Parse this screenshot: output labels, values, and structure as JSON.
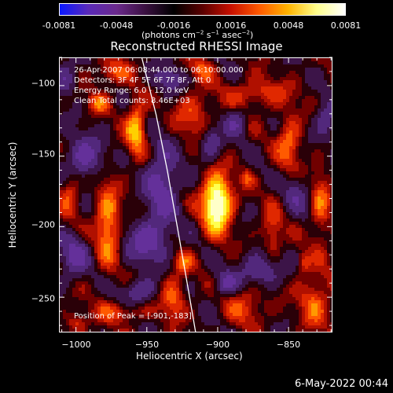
{
  "colorbar": {
    "ticks": [
      "-0.0081",
      "-0.0048",
      "-0.0016",
      "0.0016",
      "0.0048",
      "0.0081"
    ],
    "units": {
      "prefix": "(photons cm",
      "exp1": "−2",
      "mid1": " s",
      "exp2": "−1",
      "mid2": " asec",
      "exp3": "−2",
      "suffix": ")"
    },
    "colors": [
      "#0a18ff",
      "#5a2ab8",
      "#6b2a8c",
      "#3a1040",
      "#000000",
      "#5a0000",
      "#c81000",
      "#ff5a00",
      "#ffb400",
      "#ffff8c",
      "#ffffff"
    ]
  },
  "title": "Reconstructed RHESSI Image",
  "annotations": {
    "line1": "26-Apr-2007 06:08:44.000 to 06:10:00.000",
    "line2": "Detectors: 3F 4F 5F 6F 7F 8F, Att 0",
    "line3": "Energy Range: 6.0 - 12.0 keV",
    "line4": "Clean     Total counts: 8.46E+03"
  },
  "peak_label": "Position of Peak = [-901,-183]",
  "x_axis": {
    "title": "Heliocentric X (arcsec)",
    "range": [
      -1012,
      -819
    ],
    "ticks": [
      {
        "value": -1000,
        "label": "−1000"
      },
      {
        "value": -950,
        "label": "−950"
      },
      {
        "value": -900,
        "label": "−900"
      },
      {
        "value": -850,
        "label": "−850"
      }
    ]
  },
  "y_axis": {
    "title": "Heliocentric Y (arcsec)",
    "range": [
      -275,
      -80
    ],
    "ticks": [
      {
        "value": -100,
        "label": "−100"
      },
      {
        "value": -150,
        "label": "−150"
      },
      {
        "value": -200,
        "label": "−200"
      },
      {
        "value": -250,
        "label": "−250"
      }
    ]
  },
  "sources": [
    {
      "x": -901,
      "y": -183,
      "sx": 7,
      "sy": 14,
      "amp": 1.0
    },
    {
      "x": -958,
      "y": -130,
      "sx": 5,
      "sy": 14,
      "amp": 0.55
    },
    {
      "x": -975,
      "y": -90,
      "sx": 8,
      "sy": 6,
      "amp": 0.35
    },
    {
      "x": -985,
      "y": -112,
      "sx": 5,
      "sy": 5,
      "amp": 0.35
    },
    {
      "x": -978,
      "y": -198,
      "sx": 6,
      "sy": 20,
      "amp": 0.5
    },
    {
      "x": -1005,
      "y": -175,
      "sx": 5,
      "sy": 12,
      "amp": 0.3
    },
    {
      "x": -918,
      "y": -120,
      "sx": 9,
      "sy": 11,
      "amp": 0.3
    },
    {
      "x": -912,
      "y": -88,
      "sx": 6,
      "sy": 6,
      "amp": 0.3
    },
    {
      "x": -872,
      "y": -105,
      "sx": 16,
      "sy": 7,
      "amp": 0.3
    },
    {
      "x": -850,
      "y": -140,
      "sx": 6,
      "sy": 14,
      "amp": 0.38
    },
    {
      "x": -862,
      "y": -205,
      "sx": 5,
      "sy": 14,
      "amp": 0.3
    },
    {
      "x": -828,
      "y": -185,
      "sx": 5,
      "sy": 20,
      "amp": 0.32
    },
    {
      "x": -932,
      "y": -250,
      "sx": 6,
      "sy": 10,
      "amp": 0.4
    },
    {
      "x": -925,
      "y": -225,
      "sx": 5,
      "sy": 6,
      "amp": 0.3
    },
    {
      "x": -970,
      "y": -260,
      "sx": 12,
      "sy": 5,
      "amp": 0.3
    },
    {
      "x": -1000,
      "y": -268,
      "sx": 5,
      "sy": 5,
      "amp": 0.3
    },
    {
      "x": -880,
      "y": -255,
      "sx": 10,
      "sy": 10,
      "amp": 0.28
    },
    {
      "x": -832,
      "y": -252,
      "sx": 8,
      "sy": 14,
      "amp": 0.35
    },
    {
      "x": -880,
      "y": -165,
      "sx": 3,
      "sy": 5,
      "amp": 0.25
    },
    {
      "x": -840,
      "y": -225,
      "sx": 3,
      "sy": 5,
      "amp": 0.3
    }
  ],
  "negatives": [
    {
      "x": -940,
      "y": -170,
      "sx": 8,
      "sy": 20,
      "amp": 0.5
    },
    {
      "x": -995,
      "y": -150,
      "sx": 9,
      "sy": 10,
      "amp": 0.5
    },
    {
      "x": -1002,
      "y": -220,
      "sx": 7,
      "sy": 10,
      "amp": 0.45
    },
    {
      "x": -950,
      "y": -210,
      "sx": 10,
      "sy": 10,
      "amp": 0.5
    },
    {
      "x": -905,
      "y": -140,
      "sx": 5,
      "sy": 8,
      "amp": 0.4
    },
    {
      "x": -888,
      "y": -125,
      "sx": 5,
      "sy": 7,
      "amp": 0.35
    },
    {
      "x": -845,
      "y": -175,
      "sx": 6,
      "sy": 10,
      "amp": 0.3
    },
    {
      "x": -870,
      "y": -230,
      "sx": 10,
      "sy": 8,
      "amp": 0.45
    },
    {
      "x": -955,
      "y": -245,
      "sx": 8,
      "sy": 6,
      "amp": 0.4
    },
    {
      "x": -895,
      "y": -240,
      "sx": 6,
      "sy": 6,
      "amp": 0.4
    },
    {
      "x": -935,
      "y": -95,
      "sx": 7,
      "sy": 6,
      "amp": 0.35
    },
    {
      "x": -825,
      "y": -125,
      "sx": 5,
      "sy": 10,
      "amp": 0.35
    },
    {
      "x": -1008,
      "y": -95,
      "sx": 5,
      "sy": 8,
      "amp": 0.35
    }
  ],
  "limb": [
    [
      -954,
      -80
    ],
    [
      -944,
      -120
    ],
    [
      -936,
      -160
    ],
    [
      -929,
      -200
    ],
    [
      -922,
      -240
    ],
    [
      -916,
      -275
    ]
  ],
  "timestamp": "6-May-2022 00:44"
}
